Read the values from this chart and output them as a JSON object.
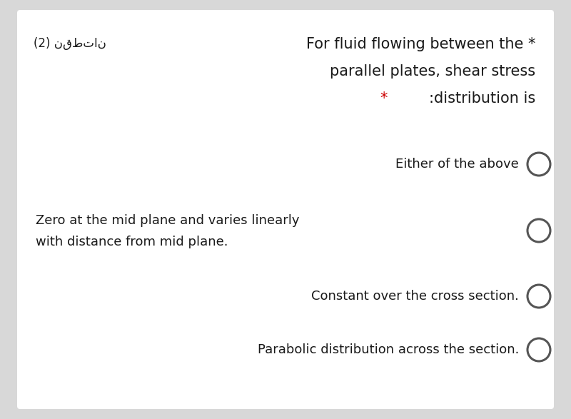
{
  "bg_color": "#d8d8d8",
  "card_color": "#ffffff",
  "title_line1": "For fluid flowing between the *",
  "title_line2": "parallel plates, shear stress",
  "title_line3_black": ":distribution is",
  "arabic_label": "(2) نقطتان",
  "opt1": "Either of the above",
  "opt2a": "Zero at the mid plane and varies linearly",
  "opt2b": "with distance from mid plane.",
  "opt3": "Constant over the cross section.",
  "opt4": "Parabolic distribution across the section.",
  "text_color": "#1a1a1a",
  "star_color": "#cc0000",
  "circle_edge_color": "#555555",
  "font_size_title": 15,
  "font_size_option": 13,
  "font_size_arabic": 12
}
